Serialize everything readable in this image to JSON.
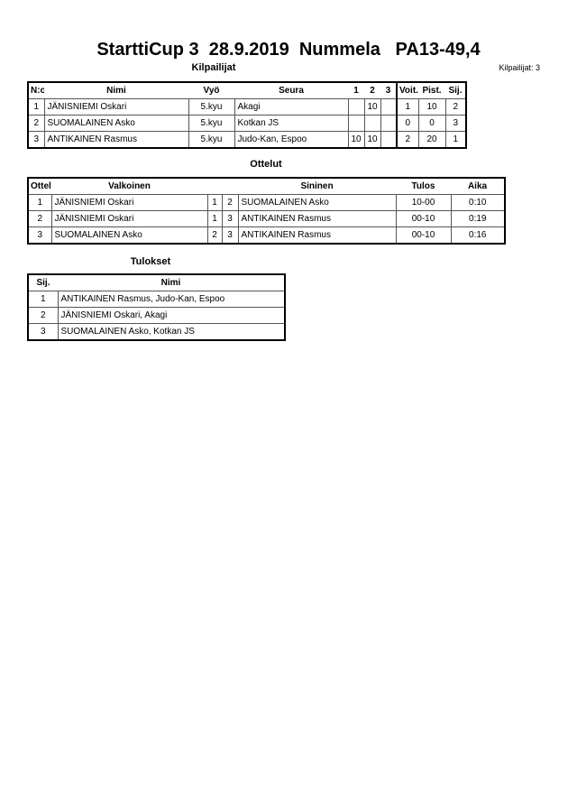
{
  "title": "StarttiCup 3  28.9.2019  Nummela   PA13-49,4",
  "competitors": {
    "heading": "Kilpailijat",
    "count_label": "Kilpailijat: 3",
    "columns": [
      "N:o",
      "Nimi",
      "Vyö",
      "Seura",
      "1",
      "2",
      "3",
      "Voit.",
      "Pist.",
      "Sij."
    ],
    "rows": [
      [
        "1",
        "JÄNISNIEMI Oskari",
        "5.kyu",
        "Akagi",
        "",
        "10",
        "",
        "1",
        "10",
        "2"
      ],
      [
        "2",
        "SUOMALAINEN Asko",
        "5.kyu",
        "Kotkan JS",
        "",
        "",
        "",
        "0",
        "0",
        "3"
      ],
      [
        "3",
        "ANTIKAINEN Rasmus",
        "5.kyu",
        "Judo-Kan, Espoo",
        "10",
        "10",
        "",
        "2",
        "20",
        "1"
      ]
    ]
  },
  "matches": {
    "heading": "Ottelut",
    "columns": [
      "Ottelu",
      "Valkoinen",
      "",
      "",
      "Sininen",
      "Tulos",
      "Aika"
    ],
    "rows": [
      [
        "1",
        "JÄNISNIEMI Oskari",
        "1",
        "2",
        "SUOMALAINEN Asko",
        "10-00",
        "0:10"
      ],
      [
        "2",
        "JÄNISNIEMI Oskari",
        "1",
        "3",
        "ANTIKAINEN Rasmus",
        "00-10",
        "0:19"
      ],
      [
        "3",
        "SUOMALAINEN Asko",
        "2",
        "3",
        "ANTIKAINEN Rasmus",
        "00-10",
        "0:16"
      ]
    ]
  },
  "results": {
    "heading": "Tulokset",
    "columns": [
      "Sij.",
      "Nimi"
    ],
    "rows": [
      [
        "1",
        "ANTIKAINEN Rasmus, Judo-Kan, Espoo"
      ],
      [
        "2",
        "JÄNISNIEMI Oskari, Akagi"
      ],
      [
        "3",
        "SUOMALAINEN Asko, Kotkan JS"
      ]
    ]
  }
}
